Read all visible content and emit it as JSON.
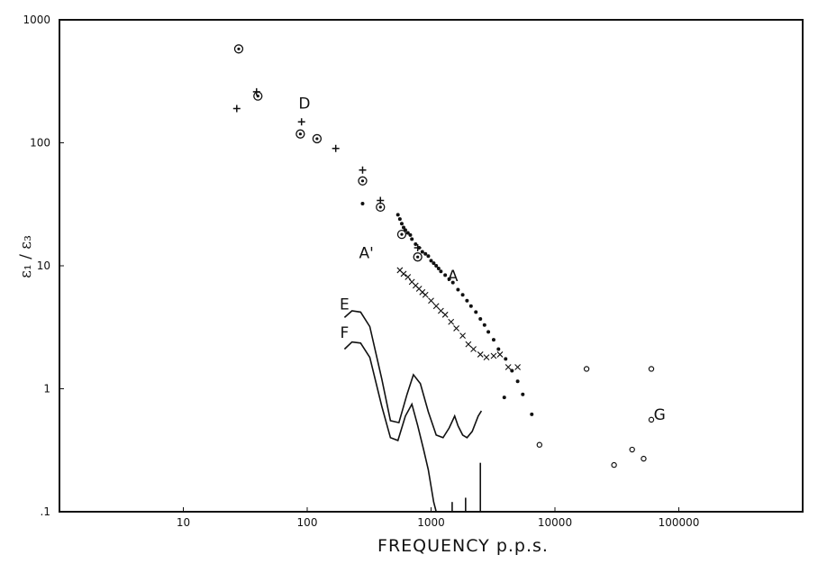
{
  "chart_data": {
    "type": "scatter",
    "title": "",
    "xlabel": "FREQUENCY p.p.s.",
    "ylabel": "ε₁ / ε₃",
    "x_scale": "log",
    "y_scale": "log",
    "xlim": [
      1,
      1000000
    ],
    "ylim": [
      0.1,
      1000
    ],
    "grid": false,
    "x_ticks": [
      10,
      100,
      1000,
      10000,
      100000
    ],
    "x_tick_labels": [
      "10",
      "100",
      "1000",
      "10000",
      "100000"
    ],
    "y_ticks": [
      0.1,
      1,
      10,
      100,
      1000
    ],
    "y_tick_labels": [
      ".1",
      "1",
      "10",
      "100",
      "1000"
    ],
    "annotations": [
      {
        "text": "D",
        "x": 95,
        "y": 190
      },
      {
        "text": "A",
        "x": 1500,
        "y": 7.5
      },
      {
        "text": "A'",
        "x": 300,
        "y": 11.5
      },
      {
        "text": "E",
        "x": 200,
        "y": 4.4
      },
      {
        "text": "F",
        "x": 200,
        "y": 2.6
      },
      {
        "text": "G",
        "x": 70000,
        "y": 0.56
      }
    ],
    "series": [
      {
        "name": "D",
        "marker": "circled-dot",
        "points": [
          [
            28,
            580
          ],
          [
            40,
            240
          ],
          [
            88,
            118
          ],
          [
            120,
            108
          ],
          [
            280,
            49
          ],
          [
            390,
            30
          ],
          [
            580,
            18
          ],
          [
            780,
            11.8
          ]
        ]
      },
      {
        "name": "D",
        "marker": "plus",
        "points": [
          [
            27,
            190
          ],
          [
            39,
            260
          ],
          [
            90,
            148
          ],
          [
            170,
            90
          ],
          [
            280,
            60
          ],
          [
            390,
            34
          ],
          [
            780,
            14
          ]
        ]
      },
      {
        "name": "A",
        "marker": "dot",
        "points": [
          [
            280,
            32
          ],
          [
            540,
            26
          ],
          [
            560,
            24
          ],
          [
            580,
            22
          ],
          [
            600,
            20.5
          ],
          [
            620,
            19.5
          ],
          [
            650,
            18.5
          ],
          [
            680,
            17.8
          ],
          [
            700,
            16.5
          ],
          [
            750,
            15
          ],
          [
            800,
            14
          ],
          [
            850,
            13
          ],
          [
            900,
            12.5
          ],
          [
            950,
            12
          ],
          [
            1000,
            11
          ],
          [
            1050,
            10.5
          ],
          [
            1100,
            10
          ],
          [
            1150,
            9.5
          ],
          [
            1200,
            9
          ],
          [
            1300,
            8.4
          ],
          [
            1400,
            7.8
          ],
          [
            1500,
            7.3
          ],
          [
            1650,
            6.4
          ],
          [
            1800,
            5.8
          ],
          [
            1950,
            5.2
          ],
          [
            2100,
            4.7
          ],
          [
            2300,
            4.2
          ],
          [
            2500,
            3.7
          ],
          [
            2700,
            3.3
          ],
          [
            2900,
            2.9
          ],
          [
            3200,
            2.5
          ],
          [
            3500,
            2.1
          ],
          [
            4000,
            1.75
          ],
          [
            3900,
            0.85
          ],
          [
            4500,
            1.4
          ],
          [
            5000,
            1.15
          ],
          [
            5500,
            0.9
          ],
          [
            6500,
            0.62
          ]
        ]
      },
      {
        "name": "A'",
        "marker": "cross",
        "points": [
          [
            560,
            9.2
          ],
          [
            600,
            8.6
          ],
          [
            650,
            8.1
          ],
          [
            700,
            7.4
          ],
          [
            750,
            6.9
          ],
          [
            800,
            6.5
          ],
          [
            850,
            6.1
          ],
          [
            900,
            5.8
          ],
          [
            1000,
            5.2
          ],
          [
            1100,
            4.7
          ],
          [
            1200,
            4.3
          ],
          [
            1300,
            4
          ],
          [
            1450,
            3.5
          ],
          [
            1600,
            3.1
          ],
          [
            1800,
            2.7
          ],
          [
            2000,
            2.3
          ],
          [
            2200,
            2.1
          ],
          [
            2500,
            1.9
          ],
          [
            2800,
            1.8
          ],
          [
            3200,
            1.85
          ],
          [
            3600,
            1.9
          ],
          [
            4200,
            1.5
          ],
          [
            5000,
            1.5
          ]
        ]
      },
      {
        "name": "G",
        "marker": "open-circle",
        "points": [
          [
            7500,
            0.35
          ],
          [
            18000,
            1.45
          ],
          [
            30000,
            0.24
          ],
          [
            42000,
            0.32
          ],
          [
            52000,
            0.27
          ],
          [
            60000,
            0.56
          ],
          [
            60000,
            1.45
          ]
        ]
      },
      {
        "name": "E",
        "marker": "line",
        "points": [
          [
            200,
            3.8
          ],
          [
            230,
            4.3
          ],
          [
            270,
            4.2
          ],
          [
            320,
            3.2
          ],
          [
            400,
            1.2
          ],
          [
            470,
            0.55
          ],
          [
            550,
            0.53
          ],
          [
            640,
            0.9
          ],
          [
            720,
            1.3
          ],
          [
            820,
            1.1
          ],
          [
            950,
            0.65
          ],
          [
            1100,
            0.42
          ],
          [
            1250,
            0.4
          ],
          [
            1400,
            0.48
          ],
          [
            1550,
            0.6
          ],
          [
            1650,
            0.5
          ],
          [
            1800,
            0.42
          ],
          [
            1950,
            0.4
          ],
          [
            2150,
            0.45
          ],
          [
            2400,
            0.6
          ],
          [
            2550,
            0.66
          ]
        ]
      },
      {
        "name": "F",
        "marker": "line",
        "points": [
          [
            200,
            2.1
          ],
          [
            230,
            2.4
          ],
          [
            270,
            2.35
          ],
          [
            320,
            1.8
          ],
          [
            400,
            0.72
          ],
          [
            470,
            0.4
          ],
          [
            540,
            0.38
          ],
          [
            620,
            0.6
          ],
          [
            700,
            0.75
          ],
          [
            780,
            0.5
          ],
          [
            870,
            0.32
          ],
          [
            950,
            0.22
          ],
          [
            1050,
            0.12
          ],
          [
            1100,
            0.1
          ]
        ]
      }
    ],
    "spikes": [
      [
        1480,
        0.12
      ],
      [
        1900,
        0.13
      ],
      [
        2500,
        0.25
      ]
    ]
  }
}
